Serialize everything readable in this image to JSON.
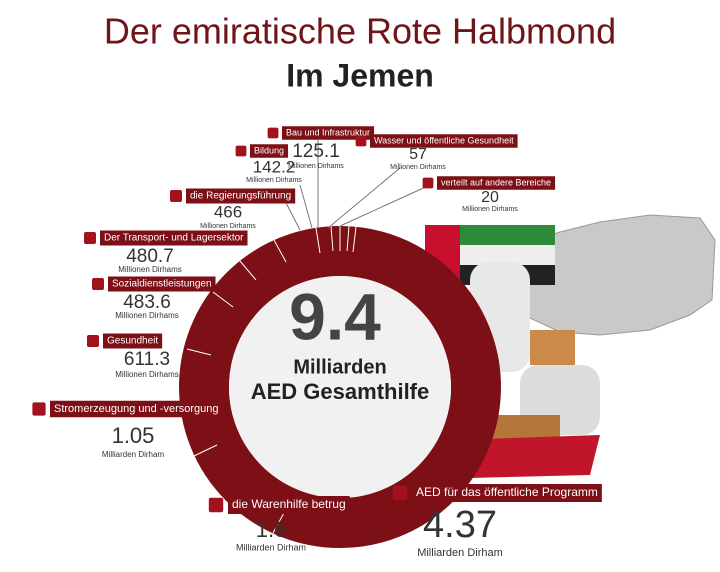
{
  "header": {
    "title": "Der emiratische Rote Halbmond",
    "subtitle": "Im Jemen"
  },
  "center": {
    "value": "9.4",
    "unit": "Milliarden",
    "caption": "AED Gesamthilfe"
  },
  "items": [
    {
      "label": "Bau und Infrastruktur",
      "value": "125.1",
      "unit": "Millionen Dirhams"
    },
    {
      "label": "Wasser und öffentliche Gesundheit",
      "value": "57",
      "unit": "Millionen Dirhams"
    },
    {
      "label": "Bildung",
      "value": "142.2",
      "unit": "Millionen Dirhams"
    },
    {
      "label": "verteilt auf andere Bereiche",
      "value": "20",
      "unit": "Millionen Dirhams"
    },
    {
      "label": "die Regierungsführung",
      "value": "466",
      "unit": "Millionen Dirhams"
    },
    {
      "label": "Der Transport- und Lagersektor",
      "value": "480.7",
      "unit": "Millionen Dirhams"
    },
    {
      "label": "Sozialdienstleistungen",
      "value": "483.6",
      "unit": "Millionen Dirhams"
    },
    {
      "label": "Gesundheit",
      "value": "611.3",
      "unit": "Millionen Dirhams"
    },
    {
      "label": "Stromerzeugung und -versorgung",
      "value": "1.05",
      "unit": "Milliarden Dirham"
    },
    {
      "label": "die Warenhilfe betrug",
      "value": "1.6",
      "unit": "Milliarden Dirham"
    },
    {
      "label": "AED für das öffentliche Programm",
      "value": "4.37",
      "unit": "Milliarden Dirham"
    }
  ]
}
